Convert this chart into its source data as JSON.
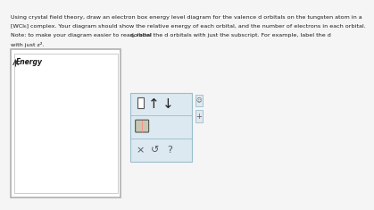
{
  "text_line1": "Using crystal field theory, draw an electron box energy level diagram for the valence d orbitals on the tungsten atom in a",
  "text_line2": "[WCl₆] complex. Your diagram should show the relative energy of each orbital, and the number of electrons in each orbital.",
  "text_line3": "Note: to make your diagram easier to read, label the d orbitals with just the subscript. For example, label the d",
  "text_line3b": " orbital",
  "text_subscript": "z",
  "text_line4": "with just z².",
  "energy_label": "Energy",
  "bg_color": "#f5f5f5",
  "box_outer_color": "#b0b0b0",
  "box_inner_color": "#cccccc",
  "box_face": "#ffffff",
  "toolbar_face": "#dce9f0",
  "toolbar_edge": "#9bbccc",
  "text_color": "#1a1a1a",
  "icon_color": "#555566",
  "arrow_color": "#333333",
  "sidebar_face": "#e0e8ee",
  "sidebar_edge": "#9bbccc"
}
